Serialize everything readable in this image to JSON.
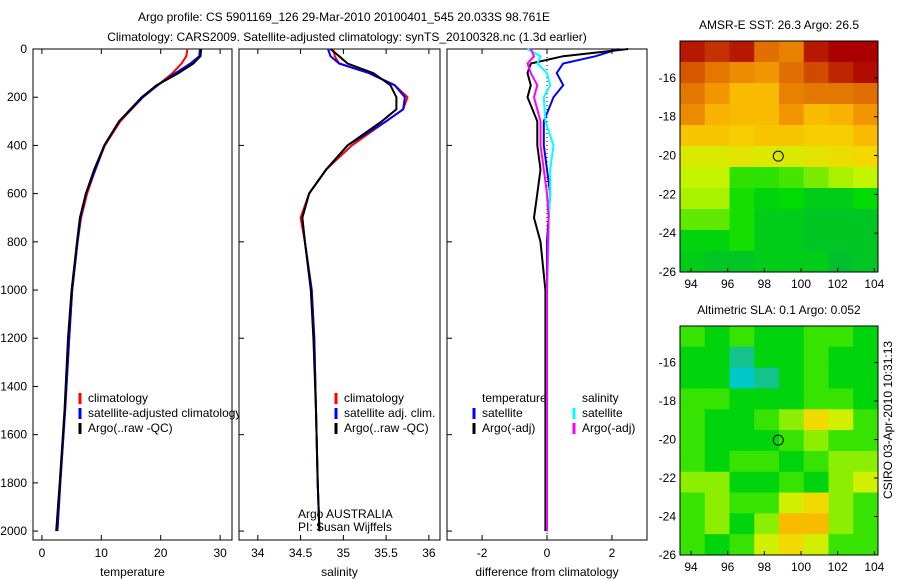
{
  "chart_data": [
    {
      "type": "line",
      "id": "temp",
      "xlabel": "temperature",
      "xlim": [
        -1.5,
        32
      ],
      "ylim": [
        0,
        2037
      ],
      "xticks": [
        0,
        10,
        20,
        30
      ],
      "yticks": [
        0,
        200,
        400,
        600,
        800,
        1000,
        1200,
        1400,
        1600,
        1800,
        2000
      ],
      "legend": {
        "placement": "bottom-right",
        "entries": [
          "climatology",
          "satellite-adjusted climatology",
          "Argo(..raw -QC)"
        ]
      },
      "depth": [
        0,
        30,
        60,
        100,
        150,
        200,
        300,
        400,
        500,
        600,
        700,
        800,
        1000,
        1200,
        1500,
        1800,
        2000
      ],
      "series": [
        {
          "name": "climatology",
          "color": "#ff0000",
          "values": [
            24.5,
            24.3,
            23.5,
            22,
            19.5,
            17,
            13.2,
            10.6,
            9,
            7.6,
            6.6,
            6,
            5.1,
            4.6,
            3.9,
            3.1,
            2.6
          ]
        },
        {
          "name": "satellite-adjusted climatology",
          "color": "#0000ff",
          "values": [
            26.6,
            26.5,
            25,
            22.5,
            19.5,
            17,
            13,
            10.5,
            9,
            7.4,
            6.5,
            6,
            5.1,
            4.6,
            3.9,
            3.1,
            2.6
          ]
        },
        {
          "name": "Argo(..raw -QC)",
          "color": "#000000",
          "values": [
            26.8,
            26.7,
            25.5,
            23,
            19.3,
            16.8,
            13,
            10.5,
            8.8,
            7.4,
            6.4,
            5.9,
            5,
            4.4,
            3.8,
            3,
            2.4
          ]
        }
      ]
    },
    {
      "type": "line",
      "id": "sal",
      "xlabel": "salinity",
      "xlim": [
        33.78,
        36.13
      ],
      "ylim": [
        0,
        2037
      ],
      "xticks": [
        34,
        34.5,
        35,
        35.5,
        36
      ],
      "legend": {
        "placement": "bottom-right",
        "entries": [
          "climatology",
          "satellite adj. clim.",
          "Argo(..raw -QC)"
        ]
      },
      "annotation": [
        "Argo AUSTRALIA",
        "PI: Susan Wijffels"
      ],
      "depth": [
        0,
        30,
        60,
        100,
        150,
        200,
        250,
        300,
        400,
        500,
        600,
        700,
        800,
        1000,
        1200,
        1500,
        1800,
        2000
      ],
      "series": [
        {
          "name": "climatology",
          "color": "#ff0000",
          "values": [
            34.88,
            34.9,
            34.95,
            35.3,
            35.6,
            35.75,
            35.7,
            35.5,
            35.1,
            34.8,
            34.6,
            34.5,
            34.55,
            34.63,
            34.66,
            34.68,
            34.7,
            34.72
          ]
        },
        {
          "name": "satellite adj. clim.",
          "color": "#0000ff",
          "values": [
            34.82,
            34.85,
            34.95,
            35.3,
            35.6,
            35.72,
            35.7,
            35.5,
            35.05,
            34.8,
            34.6,
            34.52,
            34.55,
            34.63,
            34.66,
            34.68,
            34.7,
            34.72
          ]
        },
        {
          "name": "Argo(..raw -QC)",
          "color": "#000000",
          "values": [
            34.85,
            34.95,
            35.05,
            35.35,
            35.55,
            35.62,
            35.62,
            35.45,
            35.05,
            34.8,
            34.6,
            34.52,
            34.55,
            34.62,
            34.65,
            34.68,
            34.7,
            34.72
          ]
        }
      ]
    },
    {
      "type": "line",
      "id": "diff",
      "xlabel": "difference from climatology",
      "xlim": [
        -3.08,
        3.08
      ],
      "ylim": [
        0,
        2037
      ],
      "xticks": [
        -2,
        0,
        2
      ],
      "legend": {
        "placement": "bottom",
        "entries": [
          "temperature",
          "satellite",
          "Argo(-adj)",
          "salinity",
          "satellite",
          "Argo(-adj)"
        ]
      },
      "depth": [
        0,
        30,
        60,
        100,
        150,
        200,
        300,
        400,
        500,
        600,
        700,
        800,
        1000,
        1200,
        1500,
        1800,
        2000
      ],
      "series": [
        {
          "name": "temperature satellite",
          "color": "#0000ff",
          "values": [
            2.2,
            1.5,
            0.5,
            0.3,
            0.5,
            0.2,
            -0.1,
            -0.1,
            0,
            0.1,
            0.05,
            0,
            0,
            0,
            0,
            0,
            0
          ]
        },
        {
          "name": "temperature Argo(-adj)",
          "color": "#000000",
          "values": [
            2.5,
            0.5,
            -0.5,
            -0.6,
            -0.5,
            -0.6,
            -0.3,
            -0.3,
            -0.2,
            -0.3,
            -0.4,
            -0.2,
            -0.05,
            -0.05,
            -0.05,
            -0.05,
            -0.05
          ]
        },
        {
          "name": "salinity satellite",
          "color": "#00ffff",
          "values": [
            -0.6,
            -0.2,
            -0.3,
            0,
            0.1,
            -0.1,
            -0.05,
            0.2,
            0.1,
            0.1,
            0.05,
            0.05,
            0,
            0,
            0,
            0,
            0
          ]
        },
        {
          "name": "salinity Argo(-adj)",
          "color": "#ff00ff",
          "values": [
            -0.5,
            -0.4,
            -0.6,
            -0.5,
            -0.3,
            -0.4,
            -0.2,
            -0.2,
            -0.1,
            0,
            0.05,
            0.03,
            0,
            0,
            0,
            0,
            0
          ]
        }
      ]
    },
    {
      "type": "heatmap",
      "id": "sst",
      "title": "AMSR-E SST: 26.3 Argo: 26.5",
      "xlim": [
        93.4,
        104.2
      ],
      "ylim": [
        -26,
        -14.1
      ],
      "xticks": [
        94,
        96,
        98,
        100,
        102,
        104
      ],
      "yticks": [
        -16,
        -18,
        -20,
        -22,
        -24,
        -26
      ],
      "marker": [
        98.761,
        -20.033
      ],
      "vrange": [
        24.5,
        28.5
      ],
      "grid": [
        [
          28.3,
          28.1,
          28.3,
          27.6,
          27.4,
          28.3,
          28.5,
          28.5
        ],
        [
          27.8,
          27.5,
          27.3,
          27.2,
          27.6,
          27.9,
          28.2,
          28.4
        ],
        [
          27.5,
          27.2,
          26.8,
          26.8,
          27.4,
          27.5,
          27.5,
          27.6
        ],
        [
          27.3,
          26.9,
          26.8,
          26.8,
          27.2,
          26.8,
          26.9,
          27.2
        ],
        [
          26.7,
          26.7,
          26.6,
          26.7,
          26.7,
          26.6,
          26.6,
          26.8
        ],
        [
          26.2,
          26.2,
          26.3,
          26.2,
          26.2,
          26.3,
          26.4,
          26.5
        ],
        [
          26.0,
          26.0,
          25.4,
          25.4,
          25.5,
          25.7,
          25.9,
          26.0
        ],
        [
          25.9,
          25.9,
          25.3,
          25.1,
          25.2,
          25.0,
          25.0,
          25.2
        ],
        [
          25.6,
          25.6,
          25.3,
          25.0,
          25.0,
          24.9,
          24.9,
          24.9
        ],
        [
          25.1,
          25.1,
          25.3,
          25.0,
          25.0,
          24.9,
          24.9,
          24.9
        ],
        [
          25.0,
          24.9,
          24.9,
          25.0,
          25.0,
          25.0,
          24.8,
          24.9
        ]
      ]
    },
    {
      "type": "heatmap",
      "id": "sla",
      "title": "Altimetric SLA: 0.1 Argo: 0.052",
      "xlim": [
        93.4,
        104.2
      ],
      "ylim": [
        -26,
        -14.1
      ],
      "xticks": [
        94,
        96,
        98,
        100,
        102,
        104
      ],
      "yticks": [
        -16,
        -18,
        -20,
        -22,
        -24,
        -26
      ],
      "marker": [
        98.761,
        -20.033
      ],
      "vrange": [
        -0.3,
        0.5
      ],
      "grid": [
        [
          0.05,
          0.0,
          0.05,
          0.0,
          0.0,
          0.05,
          0.05,
          0.0
        ],
        [
          0.0,
          0.0,
          -0.1,
          -0.05,
          0.0,
          0.05,
          0.0,
          0.0
        ],
        [
          0.0,
          0.0,
          -0.15,
          -0.1,
          0.0,
          0.05,
          0.0,
          0.0
        ],
        [
          0.05,
          0.05,
          0.0,
          0.0,
          0.0,
          0.05,
          0.05,
          0.0
        ],
        [
          0.05,
          0.0,
          0.0,
          0.05,
          0.1,
          0.2,
          0.15,
          0.05
        ],
        [
          0.05,
          0.0,
          0.0,
          0.0,
          0.05,
          0.1,
          0.05,
          0.05
        ],
        [
          0.05,
          0.0,
          0.05,
          0.05,
          0.0,
          0.05,
          0.1,
          0.1
        ],
        [
          0.1,
          0.1,
          0.0,
          0.0,
          0.05,
          0.0,
          0.1,
          0.15
        ],
        [
          0.05,
          0.1,
          0.05,
          0.05,
          0.15,
          0.2,
          0.1,
          0.05
        ],
        [
          0.05,
          0.1,
          0.0,
          0.1,
          0.25,
          0.25,
          0.1,
          0.05
        ],
        [
          0.05,
          0.0,
          0.05,
          0.15,
          0.2,
          0.15,
          0.05,
          0.05
        ]
      ]
    }
  ],
  "title": {
    "line1": "Argo profile: CS 5901169_126 29-Mar-2010 20100401_545 20.033S 98.761E",
    "line2": "Climatology: CARS2009. Satellite-adjusted climatology: synTS_20100328.nc (1.3d earlier)"
  },
  "stamp": "CSIRO 03-Apr-2010 10:31:13"
}
